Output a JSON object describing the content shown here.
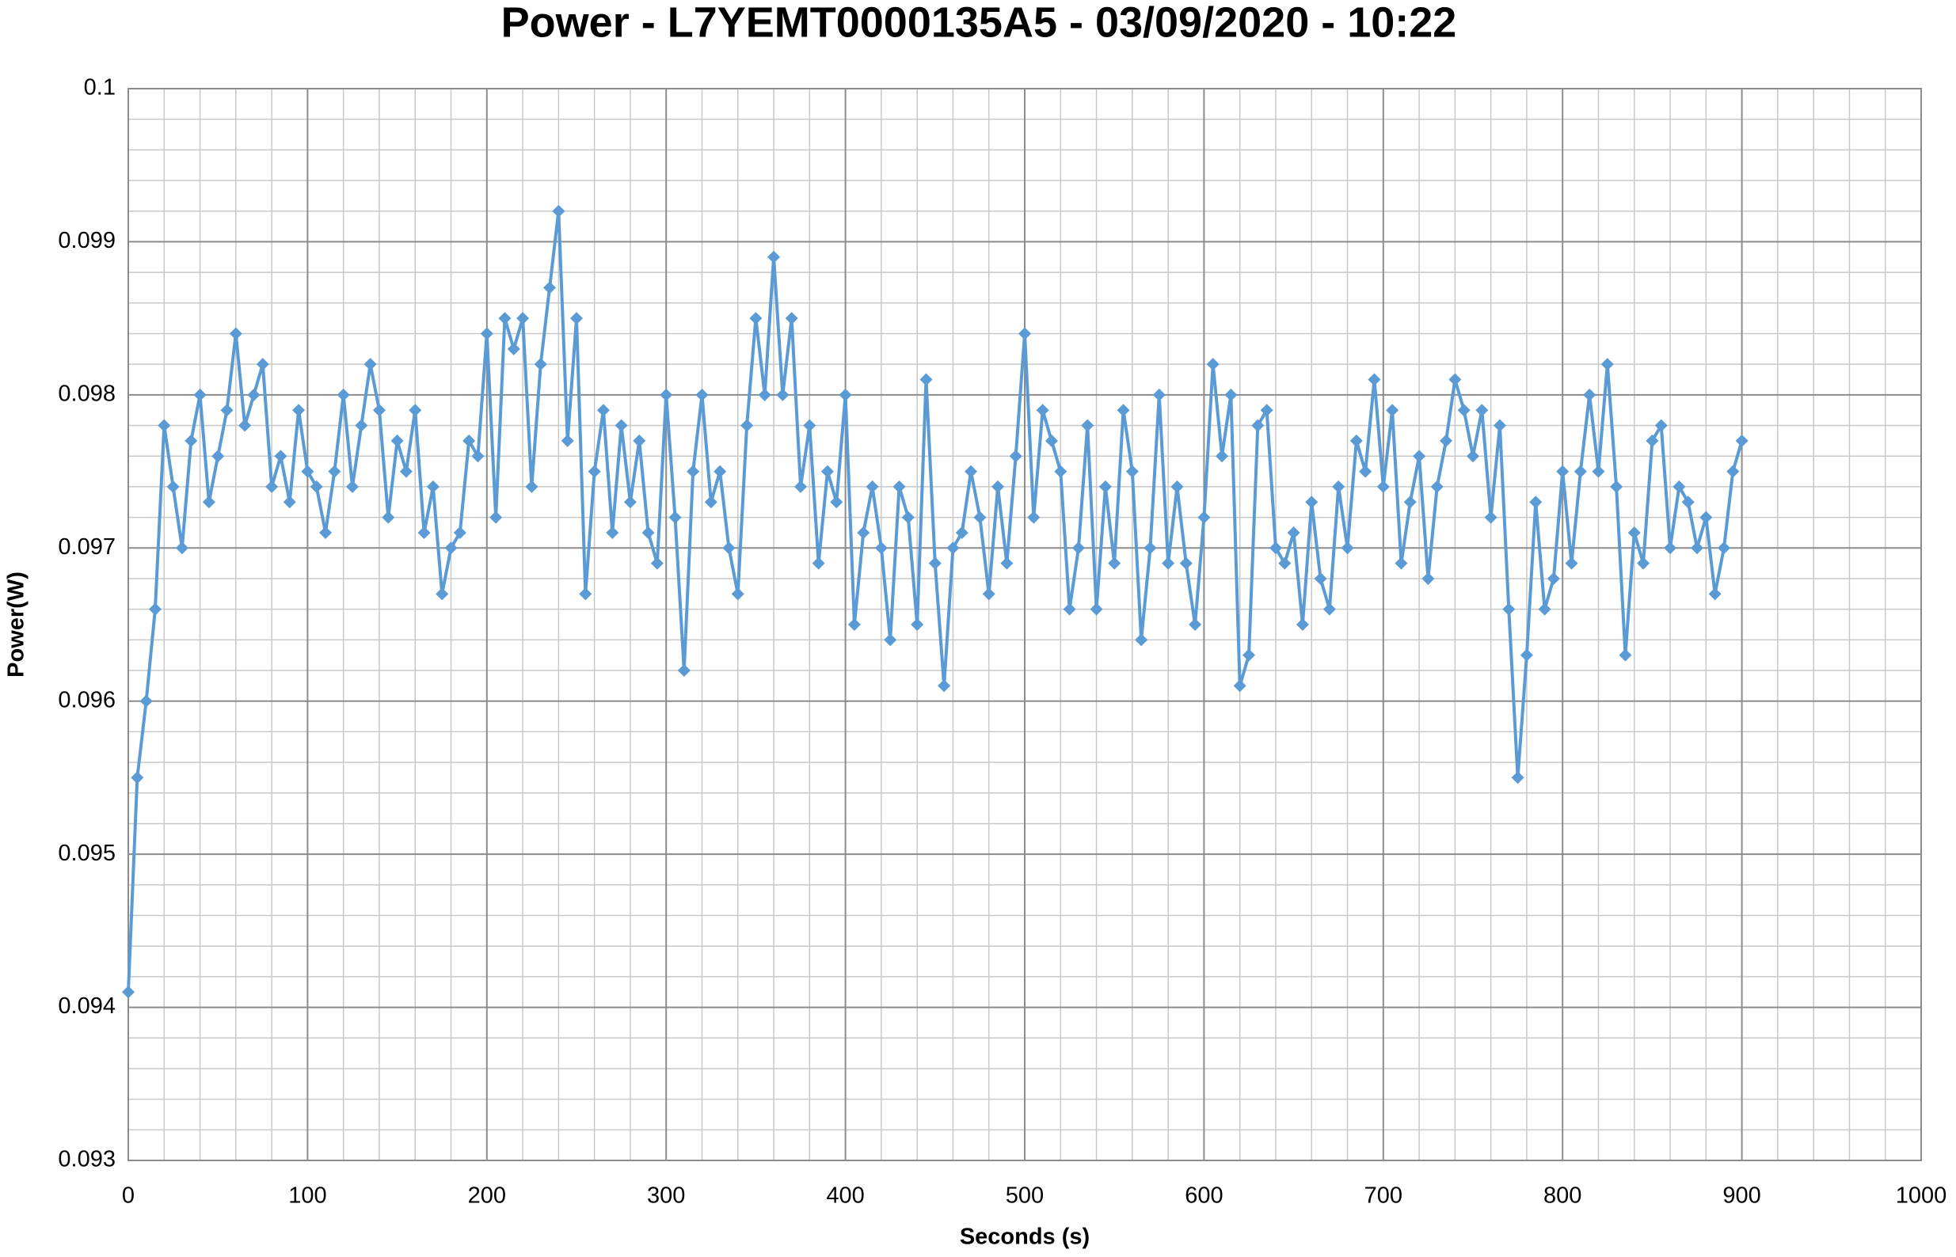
{
  "chart_data": {
    "type": "line",
    "title": "Power - L7YEMT0000135A5 - 03/09/2020 - 10:22",
    "x_label": "Seconds (s)",
    "y_label": "Power(W)",
    "color": "#5b9bd5",
    "grid": true,
    "minor_grid": true,
    "marker": "diamond",
    "xlim": [
      0,
      1000
    ],
    "xticks": [
      0,
      100,
      200,
      300,
      400,
      500,
      600,
      700,
      800,
      900,
      1000
    ],
    "ylim": [
      0.093,
      0.1
    ],
    "yticks": [
      0.093,
      0.094,
      0.095,
      0.096,
      0.097,
      0.098,
      0.099,
      0.1
    ],
    "x": [
      0,
      5,
      10,
      15,
      20,
      25,
      30,
      35,
      40,
      45,
      50,
      55,
      60,
      65,
      70,
      75,
      80,
      85,
      90,
      95,
      100,
      105,
      110,
      115,
      120,
      125,
      130,
      135,
      140,
      145,
      150,
      155,
      160,
      165,
      170,
      175,
      180,
      185,
      190,
      195,
      200,
      205,
      210,
      215,
      220,
      225,
      230,
      235,
      240,
      245,
      250,
      255,
      260,
      265,
      270,
      275,
      280,
      285,
      290,
      295,
      300,
      305,
      310,
      315,
      320,
      325,
      330,
      335,
      340,
      345,
      350,
      355,
      360,
      365,
      370,
      375,
      380,
      385,
      390,
      395,
      400,
      405,
      410,
      415,
      420,
      425,
      430,
      435,
      440,
      445,
      450,
      455,
      460,
      465,
      470,
      475,
      480,
      485,
      490,
      495,
      500,
      505,
      510,
      515,
      520,
      525,
      530,
      535,
      540,
      545,
      550,
      555,
      560,
      565,
      570,
      575,
      580,
      585,
      590,
      595,
      600,
      605,
      610,
      615,
      620,
      625,
      630,
      635,
      640,
      645,
      650,
      655,
      660,
      665,
      670,
      675,
      680,
      685,
      690,
      695,
      700,
      705,
      710,
      715,
      720,
      725,
      730,
      735,
      740,
      745,
      750,
      755,
      760,
      765,
      770,
      775,
      780,
      785,
      790,
      795,
      800,
      805,
      810,
      815,
      820,
      825,
      830,
      835,
      840,
      845,
      850,
      855,
      860,
      865,
      870,
      875,
      880,
      885,
      890,
      895,
      900
    ],
    "values": [
      0.0941,
      0.0955,
      0.096,
      0.0966,
      0.0978,
      0.0974,
      0.097,
      0.0977,
      0.098,
      0.0973,
      0.0976,
      0.0979,
      0.0984,
      0.0978,
      0.098,
      0.0982,
      0.0974,
      0.0976,
      0.0973,
      0.0979,
      0.0975,
      0.0974,
      0.0971,
      0.0975,
      0.098,
      0.0974,
      0.0978,
      0.0982,
      0.0979,
      0.0972,
      0.0977,
      0.0975,
      0.0979,
      0.0971,
      0.0974,
      0.0967,
      0.097,
      0.0971,
      0.0977,
      0.0976,
      0.0984,
      0.0972,
      0.0985,
      0.0983,
      0.0985,
      0.0974,
      0.0982,
      0.0987,
      0.0992,
      0.0977,
      0.0985,
      0.0967,
      0.0975,
      0.0979,
      0.0971,
      0.0978,
      0.0973,
      0.0977,
      0.0971,
      0.0969,
      0.098,
      0.0972,
      0.0962,
      0.0975,
      0.098,
      0.0973,
      0.0975,
      0.097,
      0.0967,
      0.0978,
      0.0985,
      0.098,
      0.0989,
      0.098,
      0.0985,
      0.0974,
      0.0978,
      0.0969,
      0.0975,
      0.0973,
      0.098,
      0.0965,
      0.0971,
      0.0974,
      0.097,
      0.0964,
      0.0974,
      0.0972,
      0.0965,
      0.0981,
      0.0969,
      0.0961,
      0.097,
      0.0971,
      0.0975,
      0.0972,
      0.0967,
      0.0974,
      0.0969,
      0.0976,
      0.0984,
      0.0972,
      0.0979,
      0.0977,
      0.0975,
      0.0966,
      0.097,
      0.0978,
      0.0966,
      0.0974,
      0.0969,
      0.0979,
      0.0975,
      0.0964,
      0.097,
      0.098,
      0.0969,
      0.0974,
      0.0969,
      0.0965,
      0.0972,
      0.0982,
      0.0976,
      0.098,
      0.0961,
      0.0963,
      0.0978,
      0.0979,
      0.097,
      0.0969,
      0.0971,
      0.0965,
      0.0973,
      0.0968,
      0.0966,
      0.0974,
      0.097,
      0.0977,
      0.0975,
      0.0981,
      0.0974,
      0.0979,
      0.0969,
      0.0973,
      0.0976,
      0.0968,
      0.0974,
      0.0977,
      0.0981,
      0.0979,
      0.0976,
      0.0979,
      0.0972,
      0.0978,
      0.0966,
      0.0955,
      0.0963,
      0.0973,
      0.0966,
      0.0968,
      0.0975,
      0.0969,
      0.0975,
      0.098,
      0.0975,
      0.0982,
      0.0974,
      0.0963,
      0.0971,
      0.0969,
      0.0977,
      0.0978,
      0.097,
      0.0974,
      0.0973,
      0.097,
      0.0972,
      0.0967,
      0.097,
      0.0975,
      0.0977
    ]
  }
}
